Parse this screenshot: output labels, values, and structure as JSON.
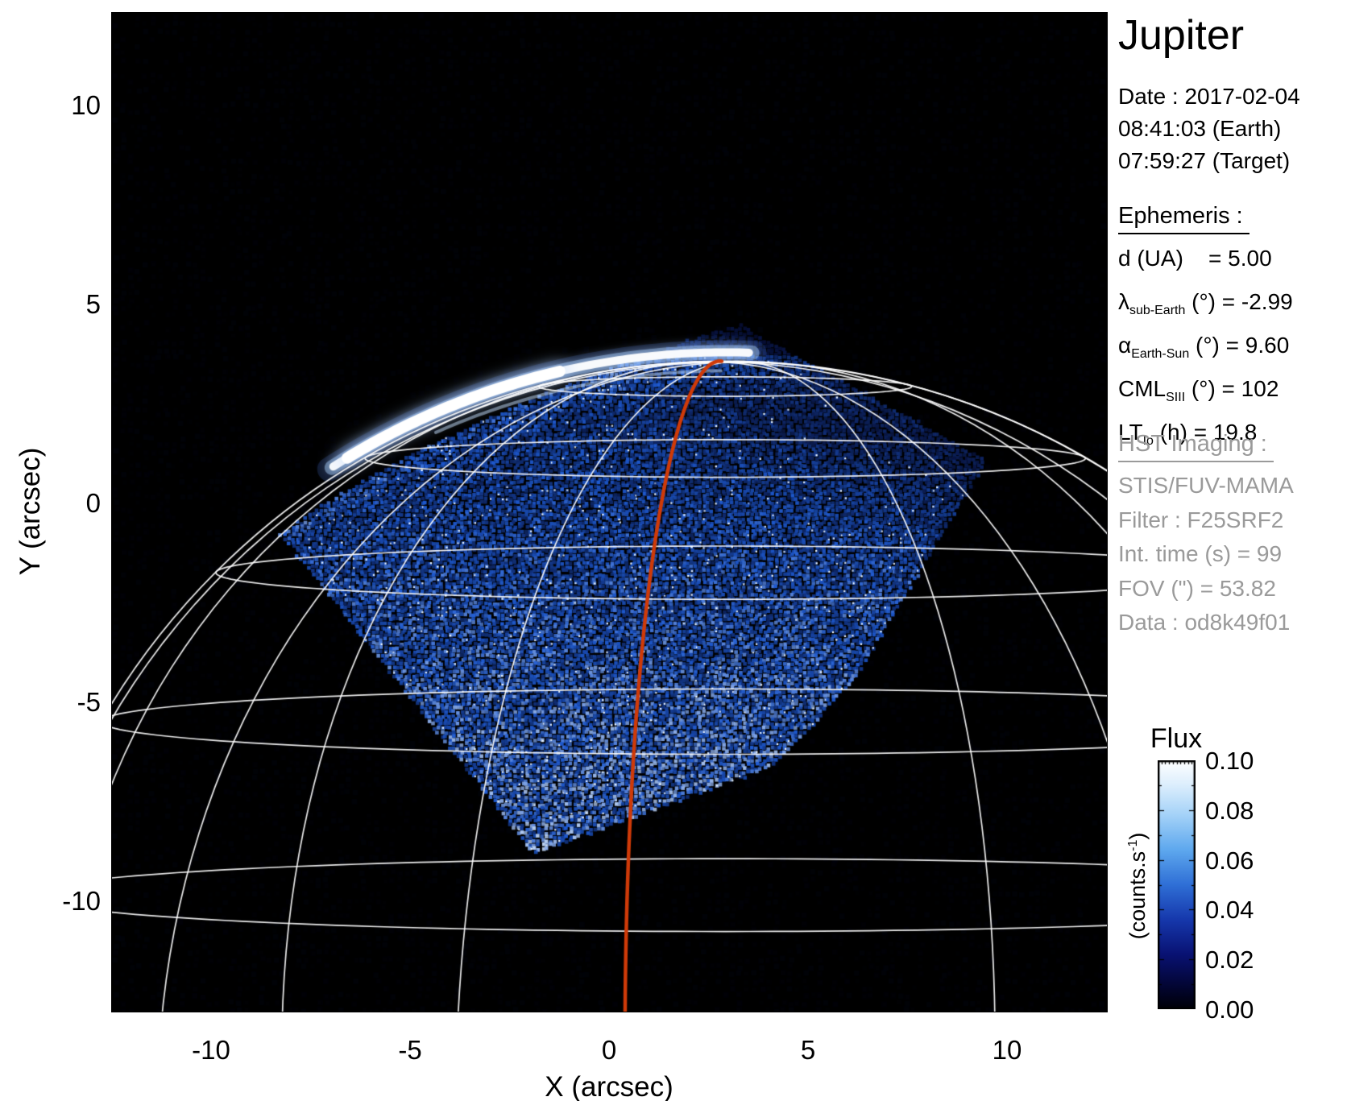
{
  "figure": {
    "title": "Jupiter",
    "datetime_lines": [
      "Date : 2017-02-04",
      "08:41:03 (Earth)",
      "07:59:27 (Target)"
    ],
    "ephemeris": {
      "heading": "Ephemeris : ",
      "rows": [
        {
          "sym": "d (UA)",
          "sub": "",
          "rest": "    = 5.00"
        },
        {
          "sym": "λ",
          "sub": "sub-Earth",
          "rest": " (°) = -2.99"
        },
        {
          "sym": "α",
          "sub": "Earth-Sun",
          "rest": " (°) = 9.60"
        },
        {
          "sym": "CML",
          "sub": "SIII",
          "rest": " (°) = 102"
        },
        {
          "sym": "LT",
          "sub": "Io",
          "rest": " (h) = 19.8"
        }
      ]
    },
    "hst": {
      "heading": "HST Imaging : ",
      "rows": [
        "STIS/FUV-MAMA",
        "Filter : F25SRF2",
        "Int. time (s) = 99",
        "FOV (\") = 53.82",
        "Data : od8k49f01"
      ]
    },
    "axes": {
      "xlabel": "X (arcsec)",
      "ylabel": "Y (arcsec)",
      "xticks": [
        "-10",
        "-5",
        "0",
        "5",
        "10"
      ],
      "yticks": [
        "10",
        "5",
        "0",
        "-5",
        "-10"
      ]
    },
    "colorbar": {
      "title": "Flux",
      "unit_prefix": "(counts.s",
      "unit_sup": "-1",
      "unit_suffix": ")",
      "ticks": [
        "0.10",
        "0.08",
        "0.06",
        "0.04",
        "0.02",
        "0.00"
      ]
    }
  },
  "chart_data": {
    "type": "heatmap",
    "title": "Jupiter",
    "xlabel": "X (arcsec)",
    "ylabel": "Y (arcsec)",
    "xlim": [
      -12.51,
      12.49
    ],
    "ylim": [
      -12.75,
      12.35
    ],
    "xticks": [
      -10,
      -5,
      0,
      5,
      10
    ],
    "yticks": [
      10,
      5,
      0,
      -5,
      -10
    ],
    "colorbar": {
      "title": "Flux",
      "unit": "counts/s",
      "min": 0.0,
      "max": 0.1,
      "ticks": [
        0.1,
        0.08,
        0.06,
        0.04,
        0.02,
        0.0
      ]
    },
    "scene": {
      "planet": {
        "center_arcsec": [
          2.9,
          -14.5
        ],
        "radius_arcsec": 18.1,
        "aurora_radius_arcsec": 18.32,
        "subobs_lat_deg": -3,
        "parallels_deg": [
          0,
          15,
          30,
          45,
          60,
          75
        ],
        "meridians_deg": [
          -98,
          -68,
          -38,
          22,
          52
        ],
        "red_meridian_deg": -8
      },
      "fov_polygon_arcsec": [
        [
          3.22,
          4.55
        ],
        [
          9.43,
          1.15
        ],
        [
          6.15,
          -4.35
        ],
        [
          4.09,
          -6.54
        ],
        [
          -1.94,
          -8.77
        ],
        [
          -8.32,
          -0.71
        ]
      ],
      "fov_top_edge_ctrl_arcsec": [
        -4.2,
        2.2
      ],
      "aurora": {
        "x_start_arcsec": -7.05,
        "x_end_arcsec": 3.7,
        "bright_x_start_arcsec": -6.6,
        "bright_x_end_arcsec": -1.2
      },
      "colors": {
        "background": "#000000",
        "graticule": "#ffffff",
        "aurora_core": "#ffffff",
        "aurora_glow": "#aaccff",
        "red_line": "#cf3a08",
        "colorbar_stops": [
          [
            0,
            "#ffffff"
          ],
          [
            0.1,
            "#dceefd"
          ],
          [
            0.22,
            "#a4d2f8"
          ],
          [
            0.36,
            "#5ea8ee"
          ],
          [
            0.5,
            "#2f6fd6"
          ],
          [
            0.64,
            "#1638ac"
          ],
          [
            0.78,
            "#091273"
          ],
          [
            0.9,
            "#030637"
          ],
          [
            1,
            "#000006"
          ]
        ]
      }
    }
  }
}
